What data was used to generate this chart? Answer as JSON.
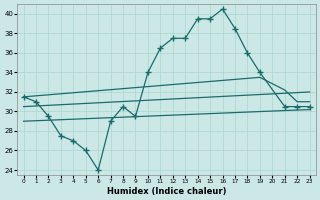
{
  "xlabel": "Humidex (Indice chaleur)",
  "main_curve": {
    "x": [
      0,
      1,
      2,
      3,
      4,
      5,
      6,
      7,
      8,
      9,
      10,
      11,
      12,
      13,
      14,
      15,
      16,
      17,
      18,
      19,
      21,
      22,
      23
    ],
    "y": [
      31.5,
      31.0,
      29.5,
      27.5,
      27.0,
      26.0,
      24.0,
      29.0,
      30.5,
      29.5,
      34.0,
      36.5,
      37.5,
      37.5,
      39.5,
      39.5,
      40.5,
      38.5,
      36.0,
      34.0,
      30.5,
      30.5,
      30.5
    ]
  },
  "line_a": {
    "x": [
      0,
      19,
      21,
      22,
      23
    ],
    "y": [
      31.5,
      33.5,
      32.2,
      31.0,
      31.0
    ]
  },
  "line_b": {
    "x": [
      0,
      23
    ],
    "y": [
      30.5,
      32.0
    ]
  },
  "line_c": {
    "x": [
      0,
      23
    ],
    "y": [
      29.0,
      30.2
    ]
  },
  "bg_color": "#cce8e6",
  "grid_color": "#aad4d0",
  "line_color": "#1a6b6b",
  "ylim": [
    23.5,
    41.0
  ],
  "xlim": [
    -0.5,
    23.5
  ],
  "yticks": [
    24,
    26,
    28,
    30,
    32,
    34,
    36,
    38,
    40
  ],
  "xticks": [
    0,
    1,
    2,
    3,
    4,
    5,
    6,
    7,
    8,
    9,
    10,
    11,
    12,
    13,
    14,
    15,
    16,
    17,
    18,
    19,
    20,
    21,
    22,
    23
  ]
}
